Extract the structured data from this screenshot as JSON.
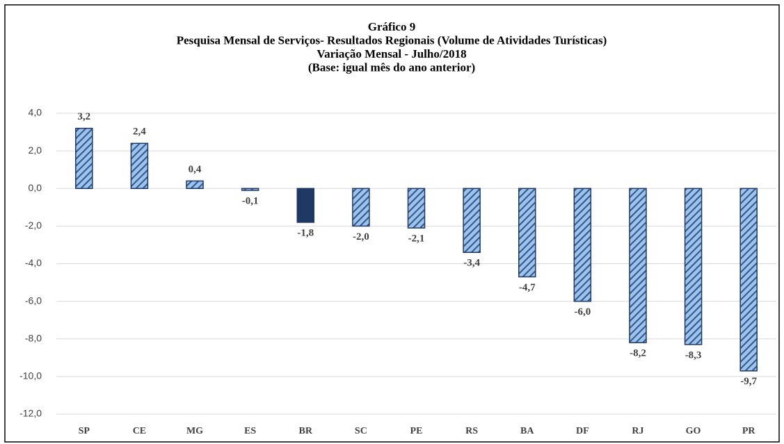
{
  "chart_data": {
    "type": "bar",
    "title": [
      "Gráfico 9",
      "Pesquisa Mensal de Serviços- Resultados Regionais (Volume de Atividades Turísticas)",
      "Variação Mensal - Julho/2018",
      "(Base: igual mês  do ano anterior)"
    ],
    "categories": [
      "SP",
      "CE",
      "MG",
      "ES",
      "BR",
      "SC",
      "PE",
      "RS",
      "BA",
      "DF",
      "RJ",
      "GO",
      "PR"
    ],
    "values": [
      3.2,
      2.4,
      0.4,
      -0.1,
      -1.8,
      -2.0,
      -2.1,
      -3.4,
      -4.7,
      -6.0,
      -8.2,
      -8.3,
      -9.7
    ],
    "value_labels": [
      "3,2",
      "2,4",
      "0,4",
      "-0,1",
      "-1,8",
      "-2,0",
      "-2,1",
      "-3,4",
      "-4,7",
      "-6,0",
      "-8,2",
      "-8,3",
      "-9,7"
    ],
    "bar_styles": [
      "hatched",
      "hatched",
      "hatched",
      "hatched",
      "solid",
      "hatched",
      "hatched",
      "hatched",
      "hatched",
      "hatched",
      "hatched",
      "hatched",
      "hatched"
    ],
    "color": "#9dc3e6",
    "edge_color": "#1f3864",
    "ylim": [
      -12,
      4
    ],
    "yticks": [
      {
        "value": -12,
        "label": "-12,0"
      },
      {
        "value": -10,
        "label": "-10,0"
      },
      {
        "value": -8,
        "label": "-8,0"
      },
      {
        "value": -6,
        "label": "-6,0"
      },
      {
        "value": -4,
        "label": "-4,0"
      },
      {
        "value": -2,
        "label": "-2,0"
      },
      {
        "value": 0,
        "label": "0,0"
      },
      {
        "value": 2,
        "label": "2,0"
      },
      {
        "value": 4,
        "label": "4,0"
      }
    ],
    "grid": true
  }
}
